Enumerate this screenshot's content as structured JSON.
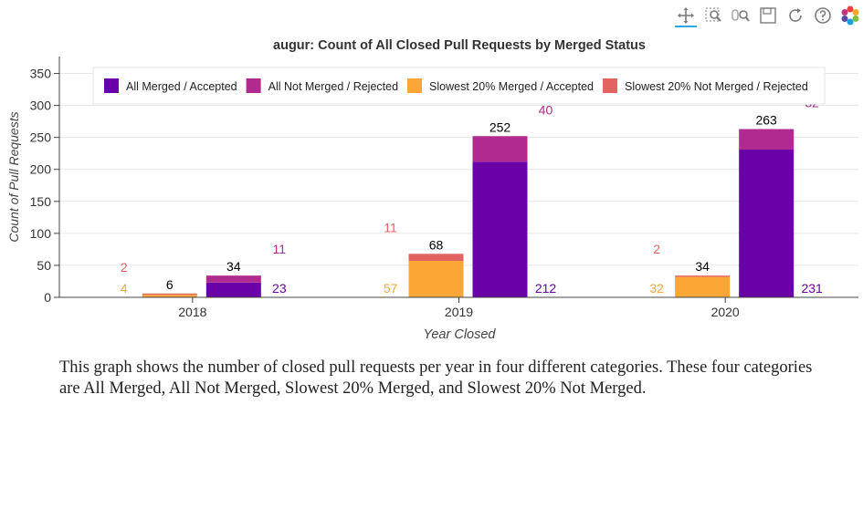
{
  "toolbar": {
    "tools": [
      {
        "name": "pan-tool-icon",
        "label": "Pan"
      },
      {
        "name": "box-zoom-tool-icon",
        "label": "Box Zoom"
      },
      {
        "name": "wheel-zoom-tool-icon",
        "label": "Wheel Zoom"
      },
      {
        "name": "save-tool-icon",
        "label": "Save"
      },
      {
        "name": "reset-tool-icon",
        "label": "Reset"
      },
      {
        "name": "help-tool-icon",
        "label": "Help"
      },
      {
        "name": "bokeh-logo-icon",
        "label": "Bokeh"
      }
    ]
  },
  "colors": {
    "merged": "#6a00a8",
    "not_merged": "#b12a90",
    "slow_merged": "#fca636",
    "slow_not_merged": "#e16462",
    "total_label": "#000000",
    "grid": "#e5e5e5",
    "axis": "#444444"
  },
  "description": "This graph shows the number of closed pull requests per year in four different categories. These four categories are All Merged, All Not Merged, Slowest 20% Merged, and Slowest 20% Not Merged.",
  "chart_data": {
    "type": "bar",
    "title": "augur: Count of All Closed Pull Requests by Merged Status",
    "xlabel": "Year Closed",
    "ylabel": "Count of Pull Requests",
    "categories": [
      "2018",
      "2019",
      "2020"
    ],
    "ylim": [
      0,
      365
    ],
    "yticks": [
      0,
      50,
      100,
      150,
      200,
      250,
      300,
      350
    ],
    "grid": true,
    "legend_position": "top",
    "stack_groups": [
      {
        "name": "Slowest 20%",
        "totals": [
          6,
          68,
          34
        ],
        "series": [
          {
            "name": "Slowest 20% Merged / Accepted",
            "key": "slow_merged",
            "values": [
              4,
              57,
              32
            ]
          },
          {
            "name": "Slowest 20% Not Merged / Rejected",
            "key": "slow_not_merged",
            "values": [
              2,
              11,
              2
            ]
          }
        ]
      },
      {
        "name": "All",
        "totals": [
          34,
          252,
          263
        ],
        "series": [
          {
            "name": "All Merged / Accepted",
            "key": "merged",
            "values": [
              23,
              212,
              231
            ]
          },
          {
            "name": "All Not Merged / Rejected",
            "key": "not_merged",
            "values": [
              11,
              40,
              32
            ]
          }
        ]
      }
    ],
    "legend": [
      {
        "label": "All Merged / Accepted",
        "key": "merged"
      },
      {
        "label": "All Not Merged / Rejected",
        "key": "not_merged"
      },
      {
        "label": "Slowest 20% Merged / Accepted",
        "key": "slow_merged"
      },
      {
        "label": "Slowest 20% Not Merged / Rejected",
        "key": "slow_not_merged"
      }
    ]
  }
}
